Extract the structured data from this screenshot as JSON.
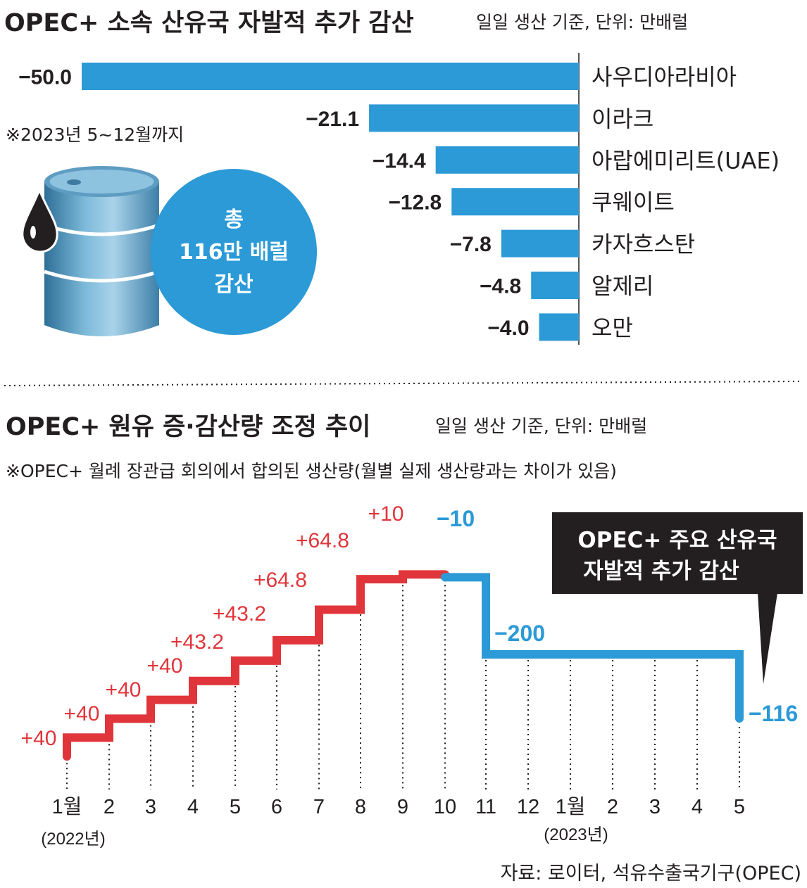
{
  "chart_data": [
    {
      "type": "bar",
      "title": "OPEC+ 소속 산유국 자발적 추가 감산",
      "unit_note": "일일 생산 기준, 단위: 만배럴",
      "footnote": "※2023년 5~12월까지",
      "total_label": [
        "총",
        "116만 배럴",
        "감산"
      ],
      "value_labels": [
        "−50.0",
        "−21.1",
        "−14.4",
        "−12.8",
        "−7.8",
        "−4.8",
        "−4.0"
      ],
      "categories": [
        "사우디아라비아",
        "이라크",
        "아랍에미리트(UAE)",
        "쿠웨이트",
        "카자흐스탄",
        "알제리",
        "오만"
      ],
      "values": [
        -50.0,
        -21.1,
        -14.4,
        -12.8,
        -7.8,
        -4.8,
        -4.0
      ],
      "color": "#2b9ad6"
    },
    {
      "type": "line",
      "title": "OPEC+ 원유 증·감산량 조정 추이",
      "unit_note": "일일 생산 기준, 단위: 만배럴",
      "footnote": "※OPEC+ 월례 장관급 회의에서 합의된 생산량(월별 실제 생산량과는 차이가 있음)",
      "x": [
        "1월",
        "2",
        "3",
        "4",
        "5",
        "6",
        "7",
        "8",
        "9",
        "10",
        "11",
        "12",
        "1월",
        "2",
        "3",
        "4",
        "5"
      ],
      "year_labels": [
        "(2022년)",
        "(2023년)"
      ],
      "increase_labels": [
        "+40",
        "+40",
        "+40",
        "+40",
        "+43.2",
        "+43.2",
        "+64.8",
        "+64.8",
        "+10"
      ],
      "increases": [
        40,
        40,
        40,
        40,
        43.2,
        43.2,
        64.8,
        64.8,
        10
      ],
      "cut_labels": [
        "−10",
        "−200",
        "−116"
      ],
      "cuts": [
        -10,
        -200,
        -116
      ],
      "increase_color": "#e0363b",
      "cut_color": "#2b9ad6",
      "callout": [
        "OPEC+ 주요 산유국",
        "자발적 추가 감산"
      ]
    }
  ],
  "source": "자료: 로이터, 석유수출국기구(OPEC)"
}
